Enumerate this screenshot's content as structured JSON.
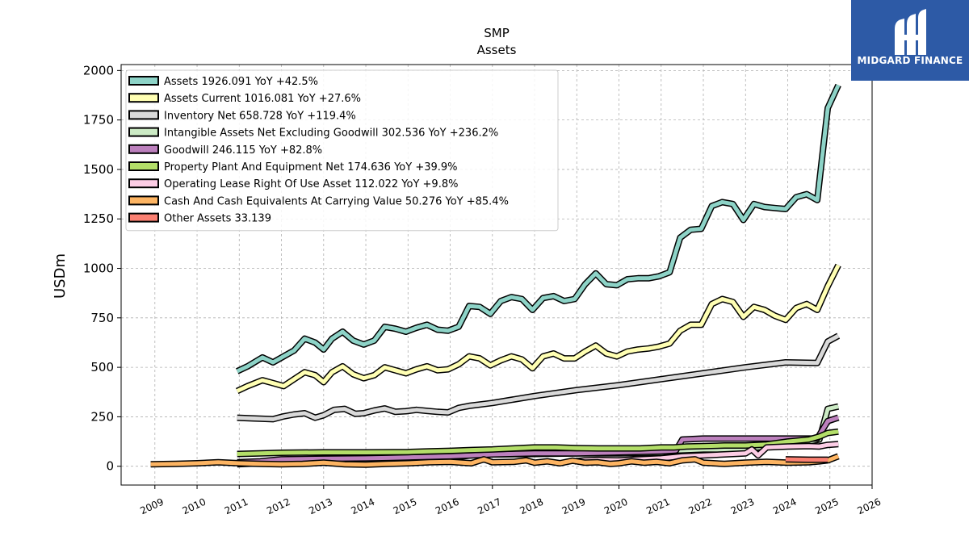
{
  "chart_data": {
    "type": "line",
    "title": "SMP",
    "subtitle": "Assets",
    "xlabel": "",
    "ylabel": "USDm",
    "xlim": [
      2008.2,
      2026.0
    ],
    "ylim": [
      -95,
      2030
    ],
    "x_ticks": [
      2009,
      2010,
      2011,
      2012,
      2013,
      2014,
      2015,
      2016,
      2017,
      2018,
      2019,
      2020,
      2021,
      2022,
      2023,
      2024,
      2025,
      2026
    ],
    "y_ticks": [
      0,
      250,
      500,
      750,
      1000,
      1250,
      1500,
      1750,
      2000
    ],
    "grid": true,
    "legend_position": "top-left",
    "series": [
      {
        "name": "Assets  1926.091 YoY +42.5%",
        "color": "#8dd3c7",
        "points": [
          [
            2010.95,
            480
          ],
          [
            2011.2,
            505
          ],
          [
            2011.55,
            550
          ],
          [
            2011.8,
            525
          ],
          [
            2012.05,
            555
          ],
          [
            2012.3,
            585
          ],
          [
            2012.55,
            645
          ],
          [
            2012.8,
            625
          ],
          [
            2013.0,
            590
          ],
          [
            2013.2,
            645
          ],
          [
            2013.45,
            680
          ],
          [
            2013.7,
            635
          ],
          [
            2013.95,
            615
          ],
          [
            2014.2,
            635
          ],
          [
            2014.45,
            705
          ],
          [
            2014.7,
            695
          ],
          [
            2014.95,
            680
          ],
          [
            2015.2,
            700
          ],
          [
            2015.45,
            715
          ],
          [
            2015.7,
            690
          ],
          [
            2015.95,
            685
          ],
          [
            2016.2,
            705
          ],
          [
            2016.45,
            810
          ],
          [
            2016.7,
            805
          ],
          [
            2016.95,
            770
          ],
          [
            2017.2,
            835
          ],
          [
            2017.45,
            855
          ],
          [
            2017.7,
            845
          ],
          [
            2017.95,
            790
          ],
          [
            2018.2,
            850
          ],
          [
            2018.45,
            860
          ],
          [
            2018.7,
            835
          ],
          [
            2018.95,
            845
          ],
          [
            2019.2,
            920
          ],
          [
            2019.45,
            975
          ],
          [
            2019.7,
            920
          ],
          [
            2019.95,
            915
          ],
          [
            2020.2,
            945
          ],
          [
            2020.45,
            950
          ],
          [
            2020.7,
            950
          ],
          [
            2020.95,
            960
          ],
          [
            2021.2,
            980
          ],
          [
            2021.45,
            1155
          ],
          [
            2021.7,
            1195
          ],
          [
            2021.95,
            1200
          ],
          [
            2022.2,
            1315
          ],
          [
            2022.45,
            1335
          ],
          [
            2022.7,
            1325
          ],
          [
            2022.95,
            1245
          ],
          [
            2023.2,
            1325
          ],
          [
            2023.45,
            1310
          ],
          [
            2023.7,
            1305
          ],
          [
            2023.95,
            1300
          ],
          [
            2024.2,
            1360
          ],
          [
            2024.45,
            1375
          ],
          [
            2024.7,
            1345
          ],
          [
            2024.95,
            1810
          ],
          [
            2025.2,
            1926
          ]
        ]
      },
      {
        "name": "Assets Current  1016.081 YoY +27.6%",
        "color": "#ffffb3",
        "points": [
          [
            2010.95,
            380
          ],
          [
            2011.2,
            405
          ],
          [
            2011.55,
            435
          ],
          [
            2011.8,
            420
          ],
          [
            2012.05,
            405
          ],
          [
            2012.3,
            440
          ],
          [
            2012.55,
            475
          ],
          [
            2012.8,
            460
          ],
          [
            2013.0,
            425
          ],
          [
            2013.2,
            475
          ],
          [
            2013.45,
            505
          ],
          [
            2013.7,
            465
          ],
          [
            2013.95,
            445
          ],
          [
            2014.2,
            460
          ],
          [
            2014.45,
            500
          ],
          [
            2014.7,
            485
          ],
          [
            2014.95,
            470
          ],
          [
            2015.2,
            490
          ],
          [
            2015.45,
            505
          ],
          [
            2015.7,
            485
          ],
          [
            2015.95,
            490
          ],
          [
            2016.2,
            515
          ],
          [
            2016.45,
            555
          ],
          [
            2016.7,
            545
          ],
          [
            2016.95,
            510
          ],
          [
            2017.2,
            535
          ],
          [
            2017.45,
            555
          ],
          [
            2017.7,
            540
          ],
          [
            2017.95,
            495
          ],
          [
            2018.2,
            555
          ],
          [
            2018.45,
            570
          ],
          [
            2018.7,
            545
          ],
          [
            2018.95,
            545
          ],
          [
            2019.2,
            580
          ],
          [
            2019.45,
            610
          ],
          [
            2019.7,
            570
          ],
          [
            2019.95,
            555
          ],
          [
            2020.2,
            580
          ],
          [
            2020.45,
            590
          ],
          [
            2020.7,
            595
          ],
          [
            2020.95,
            605
          ],
          [
            2021.2,
            620
          ],
          [
            2021.45,
            685
          ],
          [
            2021.7,
            715
          ],
          [
            2021.95,
            715
          ],
          [
            2022.2,
            820
          ],
          [
            2022.45,
            845
          ],
          [
            2022.7,
            830
          ],
          [
            2022.95,
            755
          ],
          [
            2023.2,
            805
          ],
          [
            2023.45,
            790
          ],
          [
            2023.7,
            760
          ],
          [
            2023.95,
            740
          ],
          [
            2024.2,
            800
          ],
          [
            2024.45,
            820
          ],
          [
            2024.7,
            790
          ],
          [
            2024.95,
            910
          ],
          [
            2025.2,
            1016
          ]
        ]
      },
      {
        "name": "Inventory Net  658.728 YoY +119.4%",
        "color": "#d9d9d9",
        "points": [
          [
            2010.95,
            245
          ],
          [
            2011.3,
            242
          ],
          [
            2011.55,
            240
          ],
          [
            2011.8,
            238
          ],
          [
            2012.05,
            252
          ],
          [
            2012.3,
            262
          ],
          [
            2012.55,
            268
          ],
          [
            2012.8,
            245
          ],
          [
            2013.0,
            258
          ],
          [
            2013.25,
            285
          ],
          [
            2013.5,
            290
          ],
          [
            2013.75,
            265
          ],
          [
            2013.95,
            268
          ],
          [
            2014.2,
            282
          ],
          [
            2014.45,
            292
          ],
          [
            2014.7,
            275
          ],
          [
            2014.95,
            278
          ],
          [
            2015.2,
            285
          ],
          [
            2015.45,
            280
          ],
          [
            2015.7,
            275
          ],
          [
            2015.95,
            272
          ],
          [
            2016.2,
            295
          ],
          [
            2016.45,
            305
          ],
          [
            2017.0,
            320
          ],
          [
            2018.0,
            355
          ],
          [
            2019.0,
            385
          ],
          [
            2020.0,
            410
          ],
          [
            2021.0,
            440
          ],
          [
            2022.0,
            470
          ],
          [
            2023.0,
            500
          ],
          [
            2023.95,
            525
          ],
          [
            2024.7,
            522
          ],
          [
            2024.95,
            630
          ],
          [
            2025.2,
            659
          ]
        ]
      },
      {
        "name": "Intangible Assets Net Excluding Goodwill  302.536 YoY +236.2%",
        "color": "#ccebc5",
        "points": [
          [
            2010.95,
            10
          ],
          [
            2012.0,
            20
          ],
          [
            2013.0,
            28
          ],
          [
            2014.0,
            32
          ],
          [
            2015.0,
            38
          ],
          [
            2016.0,
            42
          ],
          [
            2016.5,
            55
          ],
          [
            2017.0,
            60
          ],
          [
            2018.0,
            62
          ],
          [
            2019.0,
            65
          ],
          [
            2020.0,
            65
          ],
          [
            2021.0,
            68
          ],
          [
            2021.4,
            80
          ],
          [
            2022.0,
            85
          ],
          [
            2022.5,
            85
          ],
          [
            2023.0,
            88
          ],
          [
            2023.5,
            100
          ],
          [
            2024.0,
            110
          ],
          [
            2024.5,
            125
          ],
          [
            2024.75,
            135
          ],
          [
            2024.95,
            290
          ],
          [
            2025.2,
            302
          ]
        ]
      },
      {
        "name": "Goodwill  246.115 YoY +82.8%",
        "color": "#bc80bd",
        "points": [
          [
            2010.95,
            20
          ],
          [
            2011.5,
            25
          ],
          [
            2012.0,
            35
          ],
          [
            2013.0,
            38
          ],
          [
            2014.0,
            40
          ],
          [
            2014.5,
            42
          ],
          [
            2015.0,
            45
          ],
          [
            2016.0,
            50
          ],
          [
            2016.5,
            55
          ],
          [
            2017.0,
            60
          ],
          [
            2018.0,
            65
          ],
          [
            2019.0,
            65
          ],
          [
            2020.0,
            70
          ],
          [
            2021.0,
            75
          ],
          [
            2021.35,
            80
          ],
          [
            2021.5,
            135
          ],
          [
            2022.0,
            140
          ],
          [
            2023.0,
            140
          ],
          [
            2023.5,
            140
          ],
          [
            2024.0,
            140
          ],
          [
            2024.7,
            140
          ],
          [
            2024.95,
            228
          ],
          [
            2025.2,
            246
          ]
        ]
      },
      {
        "name": "Property Plant And Equipment Net  174.636 YoY +39.9%",
        "color": "#b3de69",
        "points": [
          [
            2010.95,
            62
          ],
          [
            2011.5,
            65
          ],
          [
            2012.0,
            68
          ],
          [
            2013.0,
            70
          ],
          [
            2014.0,
            70
          ],
          [
            2015.0,
            72
          ],
          [
            2015.5,
            75
          ],
          [
            2016.0,
            78
          ],
          [
            2016.5,
            82
          ],
          [
            2017.0,
            85
          ],
          [
            2017.5,
            90
          ],
          [
            2018.0,
            95
          ],
          [
            2018.5,
            95
          ],
          [
            2019.0,
            92
          ],
          [
            2019.5,
            90
          ],
          [
            2020.0,
            90
          ],
          [
            2020.5,
            90
          ],
          [
            2021.0,
            95
          ],
          [
            2021.3,
            95
          ],
          [
            2021.6,
            100
          ],
          [
            2022.0,
            102
          ],
          [
            2022.5,
            105
          ],
          [
            2023.0,
            105
          ],
          [
            2023.5,
            110
          ],
          [
            2024.0,
            125
          ],
          [
            2024.5,
            135
          ],
          [
            2024.75,
            150
          ],
          [
            2024.95,
            168
          ],
          [
            2025.2,
            175
          ]
        ]
      },
      {
        "name": "Operating Lease Right Of Use Asset  112.022 YoY +9.8%",
        "color": "#fccde5",
        "points": [
          [
            2018.95,
            25
          ],
          [
            2019.2,
            30
          ],
          [
            2019.5,
            32
          ],
          [
            2020.0,
            30
          ],
          [
            2020.5,
            35
          ],
          [
            2021.0,
            40
          ],
          [
            2021.5,
            50
          ],
          [
            2022.0,
            55
          ],
          [
            2022.5,
            60
          ],
          [
            2023.0,
            65
          ],
          [
            2023.15,
            85
          ],
          [
            2023.3,
            55
          ],
          [
            2023.5,
            95
          ],
          [
            2024.0,
            100
          ],
          [
            2024.5,
            102
          ],
          [
            2024.75,
            100
          ],
          [
            2024.95,
            108
          ],
          [
            2025.2,
            112
          ]
        ]
      },
      {
        "name": "Cash And Cash Equivalents At Carrying Value  50.276 YoY +85.4%",
        "color": "#fdb462",
        "points": [
          [
            2008.9,
            10
          ],
          [
            2009.5,
            12
          ],
          [
            2010.0,
            15
          ],
          [
            2010.5,
            20
          ],
          [
            2011.0,
            15
          ],
          [
            2011.5,
            12
          ],
          [
            2012.0,
            10
          ],
          [
            2012.5,
            12
          ],
          [
            2013.0,
            18
          ],
          [
            2013.5,
            10
          ],
          [
            2014.0,
            8
          ],
          [
            2014.5,
            12
          ],
          [
            2015.0,
            15
          ],
          [
            2015.5,
            20
          ],
          [
            2016.0,
            22
          ],
          [
            2016.5,
            15
          ],
          [
            2016.8,
            35
          ],
          [
            2017.0,
            20
          ],
          [
            2017.5,
            22
          ],
          [
            2017.8,
            30
          ],
          [
            2018.0,
            18
          ],
          [
            2018.3,
            25
          ],
          [
            2018.6,
            15
          ],
          [
            2018.9,
            28
          ],
          [
            2019.2,
            18
          ],
          [
            2019.5,
            20
          ],
          [
            2019.8,
            12
          ],
          [
            2020.0,
            15
          ],
          [
            2020.3,
            25
          ],
          [
            2020.6,
            18
          ],
          [
            2020.9,
            22
          ],
          [
            2021.2,
            15
          ],
          [
            2021.5,
            30
          ],
          [
            2021.8,
            35
          ],
          [
            2022.0,
            18
          ],
          [
            2022.5,
            12
          ],
          [
            2023.0,
            18
          ],
          [
            2023.5,
            22
          ],
          [
            2024.0,
            18
          ],
          [
            2024.5,
            20
          ],
          [
            2024.75,
            25
          ],
          [
            2024.95,
            30
          ],
          [
            2025.2,
            50
          ]
        ]
      },
      {
        "name": "Other Assets  33.139",
        "color": "#fb8072",
        "points": [
          [
            2023.95,
            35
          ],
          [
            2024.5,
            33
          ],
          [
            2024.95,
            33
          ]
        ]
      }
    ]
  },
  "brand": {
    "name": "MIDGARD FINANCE",
    "background": "#2d5aa6"
  }
}
